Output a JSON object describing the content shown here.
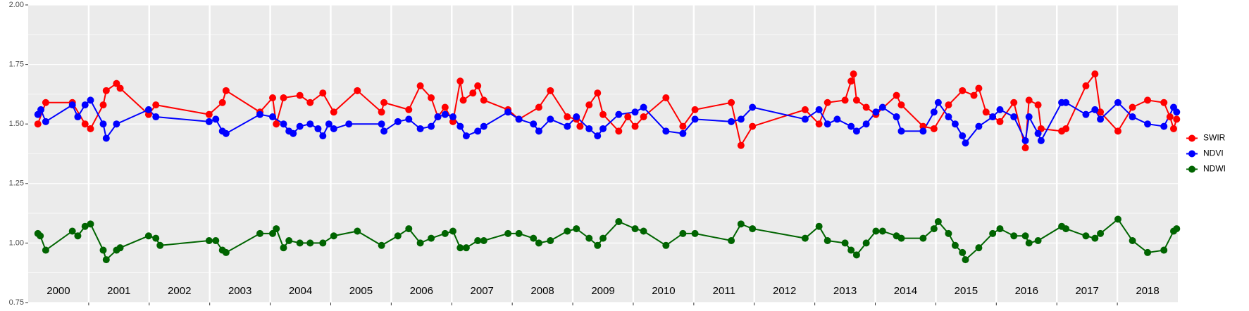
{
  "chart_data": {
    "type": "line",
    "xlim": [
      2000,
      2019
    ],
    "x_breaks": [
      2001,
      2002,
      2003,
      2004,
      2005,
      2006,
      2007,
      2008,
      2009,
      2010,
      2011,
      2012,
      2013,
      2014,
      2015,
      2016,
      2017,
      2018
    ],
    "year_labels": [
      "2000",
      "2001",
      "2002",
      "2003",
      "2004",
      "2005",
      "2006",
      "2007",
      "2008",
      "2009",
      "2010",
      "2011",
      "2012",
      "2013",
      "2014",
      "2015",
      "2016",
      "2017",
      "2018"
    ],
    "ylim": [
      0.75,
      2.0
    ],
    "yticks": [
      0.75,
      {
        "value": 1.0,
        "label": "1.00"
      },
      1.25,
      {
        "value": 1.5,
        "label": "1.50"
      },
      1.75,
      {
        "value": 2.0,
        "label": "2.00"
      }
    ],
    "minor_yticks": [
      0.875,
      1.125,
      1.375,
      1.625,
      1.875
    ],
    "grid": true,
    "legend": "right",
    "series": [
      {
        "name": "SWIR",
        "color": "#ff0000",
        "x": [
          2000.16,
          2000.29,
          2000.73,
          2000.94,
          2001.03,
          2001.24,
          2001.29,
          2001.46,
          2001.52,
          2001.99,
          2002.11,
          2002.99,
          2003.21,
          2003.27,
          2003.83,
          2004.04,
          2004.1,
          2004.22,
          2004.49,
          2004.66,
          2004.87,
          2005.05,
          2005.44,
          2005.84,
          2005.88,
          2006.29,
          2006.48,
          2006.66,
          2006.77,
          2006.89,
          2007.02,
          2007.14,
          2007.19,
          2007.35,
          2007.43,
          2007.53,
          2007.93,
          2008.11,
          2008.44,
          2008.63,
          2008.91,
          2009.06,
          2009.12,
          2009.27,
          2009.41,
          2009.5,
          2009.76,
          2009.91,
          2010.03,
          2010.17,
          2010.54,
          2010.82,
          2011.02,
          2011.62,
          2011.78,
          2011.97,
          2012.84,
          2013.07,
          2013.21,
          2013.5,
          2013.6,
          2013.64,
          2013.69,
          2013.85,
          2014.01,
          2014.35,
          2014.43,
          2014.79,
          2014.97,
          2015.21,
          2015.44,
          2015.63,
          2015.71,
          2015.83,
          2016.06,
          2016.29,
          2016.48,
          2016.54,
          2016.69,
          2016.74,
          2017.08,
          2017.15,
          2017.48,
          2017.63,
          2017.72,
          2018.01,
          2018.25,
          2018.5,
          2018.77,
          2018.87,
          2018.93,
          2018.98
        ],
        "values": [
          1.5,
          1.59,
          1.59,
          1.5,
          1.48,
          1.58,
          1.64,
          1.67,
          1.65,
          1.54,
          1.58,
          1.54,
          1.59,
          1.64,
          1.55,
          1.61,
          1.5,
          1.61,
          1.62,
          1.59,
          1.63,
          1.55,
          1.64,
          1.55,
          1.59,
          1.56,
          1.66,
          1.61,
          1.53,
          1.57,
          1.51,
          1.68,
          1.6,
          1.63,
          1.66,
          1.6,
          1.56,
          1.52,
          1.57,
          1.64,
          1.53,
          1.52,
          1.49,
          1.58,
          1.63,
          1.54,
          1.47,
          1.53,
          1.49,
          1.53,
          1.61,
          1.49,
          1.56,
          1.59,
          1.41,
          1.49,
          1.56,
          1.5,
          1.59,
          1.6,
          1.68,
          1.71,
          1.6,
          1.57,
          1.54,
          1.62,
          1.58,
          1.49,
          1.48,
          1.58,
          1.64,
          1.62,
          1.65,
          1.55,
          1.51,
          1.59,
          1.4,
          1.6,
          1.58,
          1.48,
          1.47,
          1.48,
          1.66,
          1.71,
          1.55,
          1.47,
          1.57,
          1.6,
          1.59,
          1.53,
          1.48,
          1.52
        ]
      },
      {
        "name": "NDVI",
        "color": "#0000ff",
        "x": [
          2000.16,
          2000.21,
          2000.29,
          2000.73,
          2000.82,
          2000.94,
          2001.03,
          2001.24,
          2001.29,
          2001.46,
          2001.99,
          2002.11,
          2002.99,
          2003.1,
          2003.21,
          2003.27,
          2003.83,
          2004.04,
          2004.22,
          2004.31,
          2004.38,
          2004.49,
          2004.66,
          2004.79,
          2004.87,
          2004.97,
          2005.05,
          2005.3,
          2005.84,
          2005.88,
          2006.11,
          2006.29,
          2006.48,
          2006.66,
          2006.77,
          2006.89,
          2007.02,
          2007.14,
          2007.24,
          2007.43,
          2007.53,
          2007.93,
          2008.11,
          2008.35,
          2008.44,
          2008.63,
          2008.91,
          2009.06,
          2009.27,
          2009.41,
          2009.5,
          2009.76,
          2010.03,
          2010.17,
          2010.54,
          2010.82,
          2011.02,
          2011.62,
          2011.78,
          2011.97,
          2012.84,
          2013.07,
          2013.21,
          2013.37,
          2013.6,
          2013.69,
          2013.85,
          2014.01,
          2014.12,
          2014.35,
          2014.43,
          2014.79,
          2014.97,
          2015.04,
          2015.21,
          2015.32,
          2015.44,
          2015.49,
          2015.71,
          2015.94,
          2016.06,
          2016.29,
          2016.48,
          2016.54,
          2016.69,
          2016.74,
          2017.08,
          2017.15,
          2017.48,
          2017.63,
          2017.72,
          2018.01,
          2018.25,
          2018.5,
          2018.77,
          2018.93,
          2018.98
        ],
        "values": [
          1.54,
          1.56,
          1.51,
          1.58,
          1.53,
          1.58,
          1.6,
          1.5,
          1.44,
          1.5,
          1.56,
          1.53,
          1.51,
          1.52,
          1.47,
          1.46,
          1.54,
          1.53,
          1.5,
          1.47,
          1.46,
          1.49,
          1.5,
          1.48,
          1.45,
          1.5,
          1.48,
          1.5,
          1.5,
          1.47,
          1.51,
          1.52,
          1.48,
          1.49,
          1.53,
          1.54,
          1.53,
          1.49,
          1.45,
          1.47,
          1.49,
          1.55,
          1.52,
          1.5,
          1.47,
          1.52,
          1.49,
          1.53,
          1.48,
          1.45,
          1.48,
          1.54,
          1.55,
          1.57,
          1.47,
          1.46,
          1.52,
          1.51,
          1.52,
          1.57,
          1.52,
          1.56,
          1.5,
          1.52,
          1.49,
          1.47,
          1.5,
          1.55,
          1.57,
          1.53,
          1.47,
          1.47,
          1.55,
          1.59,
          1.53,
          1.5,
          1.45,
          1.42,
          1.49,
          1.53,
          1.56,
          1.53,
          1.43,
          1.53,
          1.46,
          1.43,
          1.59,
          1.59,
          1.54,
          1.56,
          1.52,
          1.59,
          1.53,
          1.5,
          1.49,
          1.57,
          1.55
        ]
      },
      {
        "name": "NDWI",
        "color": "#006400",
        "x": [
          2000.16,
          2000.2,
          2000.29,
          2000.73,
          2000.82,
          2000.94,
          2001.03,
          2001.24,
          2001.29,
          2001.46,
          2001.52,
          2001.99,
          2002.11,
          2002.18,
          2002.99,
          2003.1,
          2003.21,
          2003.27,
          2003.83,
          2004.04,
          2004.1,
          2004.22,
          2004.31,
          2004.49,
          2004.66,
          2004.87,
          2005.05,
          2005.44,
          2005.84,
          2006.11,
          2006.29,
          2006.48,
          2006.66,
          2006.89,
          2007.02,
          2007.14,
          2007.24,
          2007.43,
          2007.53,
          2007.93,
          2008.11,
          2008.35,
          2008.44,
          2008.63,
          2008.91,
          2009.06,
          2009.27,
          2009.41,
          2009.5,
          2009.76,
          2010.03,
          2010.17,
          2010.54,
          2010.82,
          2011.02,
          2011.62,
          2011.78,
          2011.97,
          2012.84,
          2013.07,
          2013.21,
          2013.5,
          2013.6,
          2013.69,
          2013.85,
          2014.01,
          2014.12,
          2014.35,
          2014.43,
          2014.79,
          2014.97,
          2015.04,
          2015.21,
          2015.32,
          2015.44,
          2015.49,
          2015.71,
          2015.94,
          2016.06,
          2016.29,
          2016.48,
          2016.54,
          2016.69,
          2017.08,
          2017.15,
          2017.48,
          2017.63,
          2017.72,
          2018.01,
          2018.25,
          2018.5,
          2018.77,
          2018.93,
          2018.98
        ],
        "values": [
          1.04,
          1.03,
          0.97,
          1.05,
          1.03,
          1.07,
          1.08,
          0.97,
          0.93,
          0.97,
          0.98,
          1.03,
          1.02,
          0.99,
          1.01,
          1.01,
          0.97,
          0.96,
          1.04,
          1.04,
          1.06,
          0.98,
          1.01,
          1.0,
          1.0,
          1.0,
          1.03,
          1.05,
          0.99,
          1.03,
          1.06,
          1.0,
          1.02,
          1.04,
          1.05,
          0.98,
          0.98,
          1.01,
          1.01,
          1.04,
          1.04,
          1.02,
          1.0,
          1.01,
          1.05,
          1.06,
          1.02,
          0.99,
          1.02,
          1.09,
          1.06,
          1.05,
          0.99,
          1.04,
          1.04,
          1.01,
          1.08,
          1.06,
          1.02,
          1.07,
          1.01,
          1.0,
          0.97,
          0.95,
          1.0,
          1.05,
          1.05,
          1.03,
          1.02,
          1.02,
          1.06,
          1.09,
          1.04,
          0.99,
          0.96,
          0.93,
          0.98,
          1.04,
          1.06,
          1.03,
          1.03,
          1.0,
          1.01,
          1.07,
          1.06,
          1.03,
          1.02,
          1.04,
          1.1,
          1.01,
          0.96,
          0.97,
          1.05,
          1.06
        ]
      }
    ]
  }
}
